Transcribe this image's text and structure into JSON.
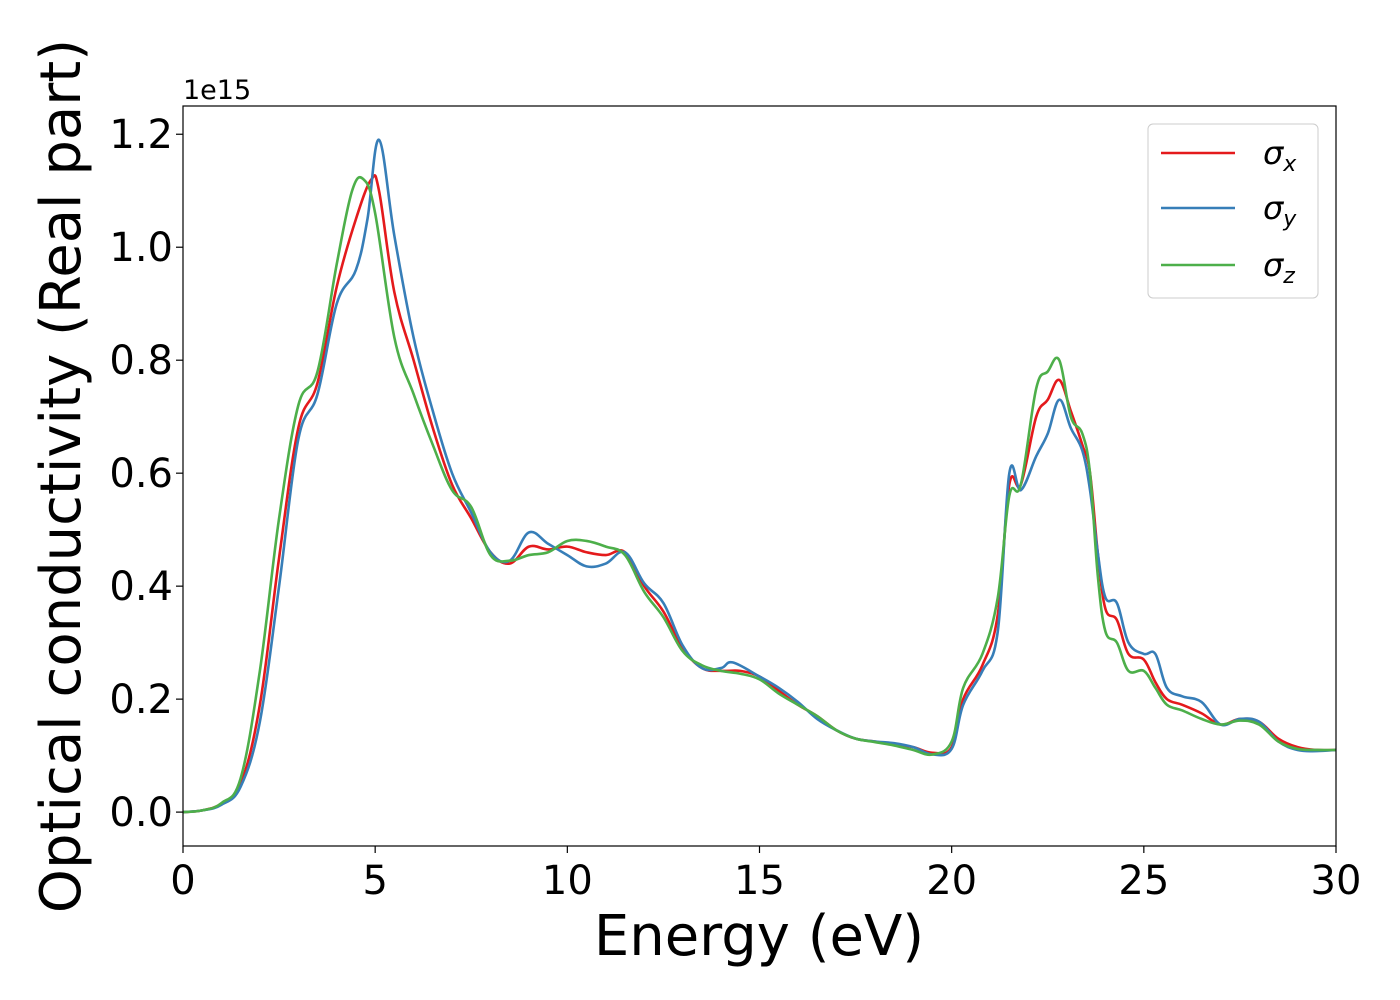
{
  "chart_data": {
    "type": "line",
    "title": "",
    "xlabel": "Energy (eV)",
    "ylabel": "Optical conductivity (Real part)",
    "y_offset_label": "1e15",
    "xlim": [
      0,
      30
    ],
    "ylim": [
      -0.06,
      1.25
    ],
    "x_ticks": [
      0,
      5,
      10,
      15,
      20,
      25,
      30
    ],
    "x_tick_labels": [
      "0",
      "5",
      "10",
      "15",
      "20",
      "25",
      "30"
    ],
    "y_ticks": [
      0.0,
      0.2,
      0.4,
      0.6,
      0.8,
      1.0,
      1.2
    ],
    "y_tick_labels": [
      "0.0",
      "0.2",
      "0.4",
      "0.6",
      "0.8",
      "1.0",
      "1.2"
    ],
    "grid": false,
    "legend_position": "top-right",
    "series": [
      {
        "name": "σx",
        "name_base": "σ",
        "name_sub": "x",
        "color": "#e41a1c",
        "points": [
          [
            0,
            0
          ],
          [
            0.5,
            0.003
          ],
          [
            1,
            0.015
          ],
          [
            1.5,
            0.05
          ],
          [
            2,
            0.19
          ],
          [
            2.5,
            0.45
          ],
          [
            3,
            0.68
          ],
          [
            3.5,
            0.76
          ],
          [
            4,
            0.93
          ],
          [
            4.5,
            1.05
          ],
          [
            4.9,
            1.12
          ],
          [
            5.1,
            1.1
          ],
          [
            5.5,
            0.92
          ],
          [
            6,
            0.8
          ],
          [
            6.5,
            0.68
          ],
          [
            7,
            0.58
          ],
          [
            7.5,
            0.52
          ],
          [
            8,
            0.46
          ],
          [
            8.5,
            0.44
          ],
          [
            9,
            0.47
          ],
          [
            9.5,
            0.465
          ],
          [
            10,
            0.47
          ],
          [
            10.5,
            0.46
          ],
          [
            11,
            0.455
          ],
          [
            11.5,
            0.46
          ],
          [
            12,
            0.4
          ],
          [
            12.5,
            0.355
          ],
          [
            13,
            0.29
          ],
          [
            13.5,
            0.255
          ],
          [
            14,
            0.25
          ],
          [
            14.5,
            0.25
          ],
          [
            15,
            0.24
          ],
          [
            15.5,
            0.215
          ],
          [
            16,
            0.19
          ],
          [
            16.5,
            0.17
          ],
          [
            17,
            0.145
          ],
          [
            17.5,
            0.13
          ],
          [
            18,
            0.125
          ],
          [
            18.5,
            0.12
          ],
          [
            19,
            0.115
          ],
          [
            19.5,
            0.105
          ],
          [
            20,
            0.115
          ],
          [
            20.3,
            0.2
          ],
          [
            20.8,
            0.26
          ],
          [
            21.2,
            0.35
          ],
          [
            21.5,
            0.58
          ],
          [
            21.8,
            0.58
          ],
          [
            22.2,
            0.7
          ],
          [
            22.5,
            0.73
          ],
          [
            22.8,
            0.765
          ],
          [
            23.1,
            0.71
          ],
          [
            23.4,
            0.65
          ],
          [
            23.6,
            0.6
          ],
          [
            23.8,
            0.46
          ],
          [
            24,
            0.36
          ],
          [
            24.3,
            0.34
          ],
          [
            24.6,
            0.28
          ],
          [
            25,
            0.27
          ],
          [
            25.3,
            0.23
          ],
          [
            25.6,
            0.2
          ],
          [
            26,
            0.19
          ],
          [
            26.5,
            0.175
          ],
          [
            27,
            0.155
          ],
          [
            27.5,
            0.165
          ],
          [
            28,
            0.16
          ],
          [
            28.5,
            0.13
          ],
          [
            29,
            0.115
          ],
          [
            29.5,
            0.11
          ],
          [
            30,
            0.11
          ]
        ]
      },
      {
        "name": "σy",
        "name_base": "σ",
        "name_sub": "y",
        "color": "#377eb8",
        "points": [
          [
            0,
            0
          ],
          [
            0.5,
            0.003
          ],
          [
            1,
            0.013
          ],
          [
            1.5,
            0.045
          ],
          [
            2,
            0.16
          ],
          [
            2.5,
            0.4
          ],
          [
            3,
            0.66
          ],
          [
            3.5,
            0.74
          ],
          [
            4,
            0.9
          ],
          [
            4.5,
            0.96
          ],
          [
            4.8,
            1.05
          ],
          [
            5.1,
            1.19
          ],
          [
            5.5,
            1.02
          ],
          [
            6,
            0.84
          ],
          [
            6.5,
            0.71
          ],
          [
            7,
            0.6
          ],
          [
            7.5,
            0.53
          ],
          [
            8,
            0.46
          ],
          [
            8.5,
            0.445
          ],
          [
            9,
            0.495
          ],
          [
            9.5,
            0.475
          ],
          [
            10,
            0.455
          ],
          [
            10.5,
            0.435
          ],
          [
            11,
            0.44
          ],
          [
            11.5,
            0.46
          ],
          [
            12,
            0.405
          ],
          [
            12.5,
            0.37
          ],
          [
            13,
            0.295
          ],
          [
            13.5,
            0.255
          ],
          [
            14,
            0.255
          ],
          [
            14.3,
            0.265
          ],
          [
            15,
            0.24
          ],
          [
            15.5,
            0.22
          ],
          [
            16,
            0.195
          ],
          [
            16.5,
            0.165
          ],
          [
            17,
            0.145
          ],
          [
            17.5,
            0.13
          ],
          [
            18,
            0.125
          ],
          [
            18.5,
            0.122
          ],
          [
            19,
            0.115
          ],
          [
            19.5,
            0.102
          ],
          [
            20,
            0.112
          ],
          [
            20.3,
            0.19
          ],
          [
            20.8,
            0.25
          ],
          [
            21.2,
            0.32
          ],
          [
            21.5,
            0.6
          ],
          [
            21.8,
            0.57
          ],
          [
            22.2,
            0.63
          ],
          [
            22.5,
            0.67
          ],
          [
            22.8,
            0.73
          ],
          [
            23.1,
            0.68
          ],
          [
            23.4,
            0.64
          ],
          [
            23.6,
            0.57
          ],
          [
            23.8,
            0.46
          ],
          [
            24,
            0.38
          ],
          [
            24.3,
            0.37
          ],
          [
            24.6,
            0.3
          ],
          [
            25,
            0.28
          ],
          [
            25.3,
            0.28
          ],
          [
            25.6,
            0.22
          ],
          [
            26,
            0.205
          ],
          [
            26.5,
            0.195
          ],
          [
            27,
            0.155
          ],
          [
            27.5,
            0.165
          ],
          [
            28,
            0.16
          ],
          [
            28.5,
            0.125
          ],
          [
            29,
            0.11
          ],
          [
            29.5,
            0.108
          ],
          [
            30,
            0.11
          ]
        ]
      },
      {
        "name": "σz",
        "name_base": "σ",
        "name_sub": "z",
        "color": "#4daf4a",
        "points": [
          [
            0,
            0
          ],
          [
            0.5,
            0.003
          ],
          [
            1,
            0.016
          ],
          [
            1.5,
            0.06
          ],
          [
            2,
            0.25
          ],
          [
            2.5,
            0.52
          ],
          [
            3,
            0.72
          ],
          [
            3.5,
            0.78
          ],
          [
            4,
            0.97
          ],
          [
            4.4,
            1.1
          ],
          [
            4.7,
            1.12
          ],
          [
            5,
            1.06
          ],
          [
            5.5,
            0.84
          ],
          [
            6,
            0.74
          ],
          [
            6.5,
            0.65
          ],
          [
            7,
            0.57
          ],
          [
            7.5,
            0.54
          ],
          [
            8,
            0.455
          ],
          [
            8.5,
            0.445
          ],
          [
            9,
            0.455
          ],
          [
            9.5,
            0.46
          ],
          [
            10,
            0.48
          ],
          [
            10.5,
            0.48
          ],
          [
            11,
            0.47
          ],
          [
            11.5,
            0.455
          ],
          [
            12,
            0.39
          ],
          [
            12.5,
            0.345
          ],
          [
            13,
            0.285
          ],
          [
            13.5,
            0.26
          ],
          [
            14,
            0.25
          ],
          [
            14.5,
            0.245
          ],
          [
            15,
            0.235
          ],
          [
            15.5,
            0.21
          ],
          [
            16,
            0.19
          ],
          [
            16.5,
            0.17
          ],
          [
            17,
            0.145
          ],
          [
            17.5,
            0.13
          ],
          [
            18,
            0.124
          ],
          [
            18.5,
            0.118
          ],
          [
            19,
            0.11
          ],
          [
            19.5,
            0.102
          ],
          [
            20,
            0.125
          ],
          [
            20.3,
            0.22
          ],
          [
            20.8,
            0.28
          ],
          [
            21.2,
            0.38
          ],
          [
            21.5,
            0.56
          ],
          [
            21.8,
            0.58
          ],
          [
            22.2,
            0.75
          ],
          [
            22.5,
            0.78
          ],
          [
            22.8,
            0.8
          ],
          [
            23.1,
            0.7
          ],
          [
            23.4,
            0.67
          ],
          [
            23.6,
            0.6
          ],
          [
            23.8,
            0.42
          ],
          [
            24,
            0.32
          ],
          [
            24.3,
            0.3
          ],
          [
            24.6,
            0.25
          ],
          [
            25,
            0.25
          ],
          [
            25.3,
            0.22
          ],
          [
            25.6,
            0.19
          ],
          [
            26,
            0.18
          ],
          [
            26.5,
            0.165
          ],
          [
            27,
            0.155
          ],
          [
            27.5,
            0.162
          ],
          [
            28,
            0.155
          ],
          [
            28.5,
            0.125
          ],
          [
            29,
            0.112
          ],
          [
            29.5,
            0.11
          ],
          [
            30,
            0.11
          ]
        ]
      }
    ]
  }
}
